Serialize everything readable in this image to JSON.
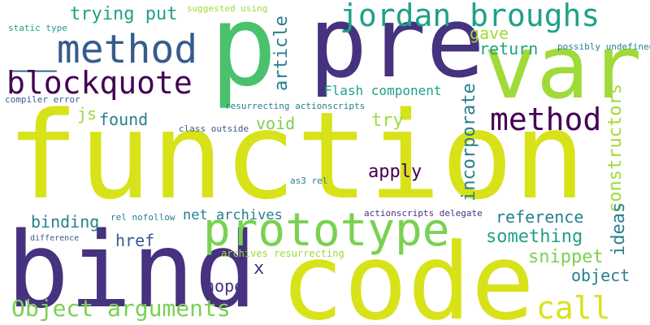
{
  "colors": {
    "background": "#ffffff",
    "yellow": "#d8e219",
    "lime": "#a0da39",
    "green": "#4ac16d",
    "light_green": "#7ad151",
    "teal_green": "#1fa187",
    "teal": "#277f8e",
    "blue": "#365c8d",
    "indigo": "#46327e",
    "purple": "#440154"
  },
  "words": [
    {
      "text": "function"
    },
    {
      "text": "code"
    },
    {
      "text": "bind"
    },
    {
      "text": "p"
    },
    {
      "text": "pre"
    },
    {
      "text": "var"
    },
    {
      "text": "prototype"
    },
    {
      "text": "__method"
    },
    {
      "text": "blockquote"
    },
    {
      "text": "jordan broughs"
    },
    {
      "text": "method"
    },
    {
      "text": "call"
    },
    {
      "text": "Object arguments"
    },
    {
      "text": "trying put"
    },
    {
      "text": "article"
    },
    {
      "text": "incorporate"
    },
    {
      "text": "constructors"
    },
    {
      "text": "ideas"
    },
    {
      "text": "apply"
    },
    {
      "text": "something"
    },
    {
      "text": "reference"
    },
    {
      "text": "snippet"
    },
    {
      "text": "object"
    },
    {
      "text": "found"
    },
    {
      "text": "void"
    },
    {
      "text": "try"
    },
    {
      "text": "binding"
    },
    {
      "text": "href"
    },
    {
      "text": "hope"
    },
    {
      "text": "net archives"
    },
    {
      "text": "Flash component"
    },
    {
      "text": "return"
    },
    {
      "text": "gave"
    },
    {
      "text": "js"
    },
    {
      "text": "x"
    },
    {
      "text": "suggested using"
    },
    {
      "text": "static type"
    },
    {
      "text": "compiler error"
    },
    {
      "text": "resurrecting actionscripts"
    },
    {
      "text": "class outside"
    },
    {
      "text": "possibly undefined"
    },
    {
      "text": "as3 rel"
    },
    {
      "text": "rel nofollow"
    },
    {
      "text": "actionscripts delegate"
    },
    {
      "text": "archives resurrecting"
    },
    {
      "text": "difference"
    }
  ]
}
